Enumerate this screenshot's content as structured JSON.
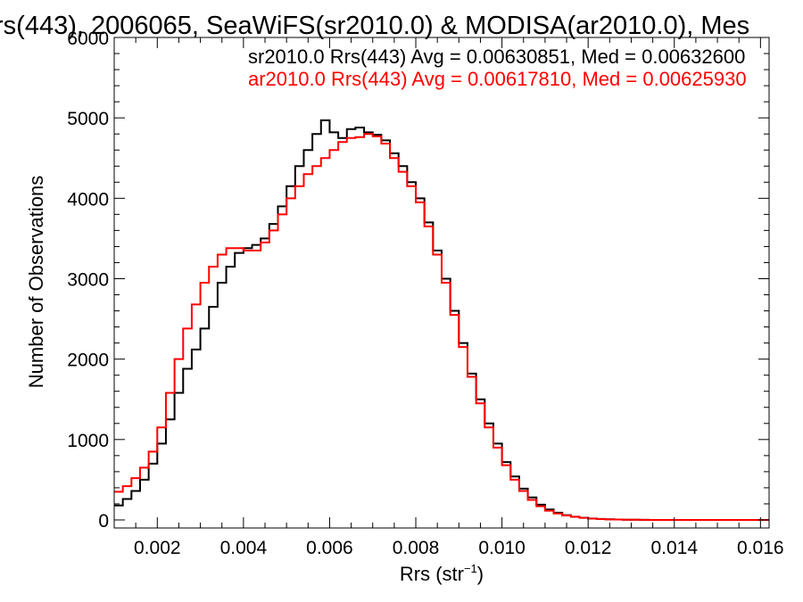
{
  "chart_data": {
    "type": "line",
    "title": "rs(443), 2006065, SeaWiFS(sr2010.0) & MODISA(ar2010.0), Mes",
    "xlabel": "Rrs (str",
    "xlabel_sup": "−1",
    "xlabel_close": ")",
    "ylabel": "Number of Observations",
    "xlim": [
      0.001,
      0.0162
    ],
    "ylim": [
      -100,
      6000
    ],
    "xticks": [
      0.002,
      0.004,
      0.006,
      0.008,
      0.01,
      0.012,
      0.014,
      0.016
    ],
    "xtick_labels": [
      "0.002",
      "0.004",
      "0.006",
      "0.008",
      "0.010",
      "0.012",
      "0.014",
      "0.016"
    ],
    "yticks": [
      0,
      1000,
      2000,
      3000,
      4000,
      5000,
      6000
    ],
    "ytick_labels": [
      "0",
      "1000",
      "2000",
      "3000",
      "4000",
      "5000",
      "6000"
    ],
    "grid": false,
    "legend_position": "top-right",
    "series": [
      {
        "name": "sr2010.0 Rrs(443) Avg = 0.00630851, Med = 0.00632600",
        "color": "#000000",
        "x": [
          0.001,
          0.0012,
          0.0014,
          0.0016,
          0.0018,
          0.002,
          0.0022,
          0.0024,
          0.0026,
          0.0028,
          0.003,
          0.0032,
          0.0034,
          0.0036,
          0.0038,
          0.004,
          0.0042,
          0.0044,
          0.0046,
          0.0048,
          0.005,
          0.0052,
          0.0054,
          0.0056,
          0.0058,
          0.006,
          0.0062,
          0.0064,
          0.0066,
          0.0068,
          0.007,
          0.0072,
          0.0074,
          0.0076,
          0.0078,
          0.008,
          0.0082,
          0.0084,
          0.0086,
          0.0088,
          0.009,
          0.0092,
          0.0094,
          0.0096,
          0.0098,
          0.01,
          0.0102,
          0.0104,
          0.0106,
          0.0108,
          0.011,
          0.0112,
          0.0114,
          0.0116,
          0.0118,
          0.012,
          0.0122,
          0.0124,
          0.0126,
          0.0128,
          0.013,
          0.0132,
          0.0134,
          0.0136,
          0.0138,
          0.014,
          0.0142,
          0.0144,
          0.0146,
          0.0148,
          0.015,
          0.0152,
          0.0154,
          0.0156,
          0.0158,
          0.016,
          0.0162
        ],
        "y": [
          180,
          260,
          360,
          500,
          700,
          950,
          1250,
          1580,
          1880,
          2120,
          2380,
          2650,
          2950,
          3150,
          3320,
          3380,
          3420,
          3500,
          3680,
          3900,
          4150,
          4400,
          4600,
          4800,
          4970,
          4820,
          4750,
          4860,
          4880,
          4820,
          4790,
          4720,
          4560,
          4400,
          4200,
          4000,
          3700,
          3350,
          3000,
          2600,
          2200,
          1820,
          1500,
          1200,
          950,
          720,
          540,
          390,
          280,
          190,
          130,
          90,
          60,
          40,
          28,
          18,
          12,
          8,
          5,
          3,
          2,
          1,
          0,
          0,
          0,
          0,
          0,
          0,
          0,
          0,
          0,
          0,
          0,
          0,
          0,
          0,
          0
        ]
      },
      {
        "name": "ar2010.0 Rrs(443) Avg = 0.00617810, Med = 0.00625930",
        "color": "#ff0000",
        "x": [
          0.001,
          0.0012,
          0.0014,
          0.0016,
          0.0018,
          0.002,
          0.0022,
          0.0024,
          0.0026,
          0.0028,
          0.003,
          0.0032,
          0.0034,
          0.0036,
          0.0038,
          0.004,
          0.0042,
          0.0044,
          0.0046,
          0.0048,
          0.005,
          0.0052,
          0.0054,
          0.0056,
          0.0058,
          0.006,
          0.0062,
          0.0064,
          0.0066,
          0.0068,
          0.007,
          0.0072,
          0.0074,
          0.0076,
          0.0078,
          0.008,
          0.0082,
          0.0084,
          0.0086,
          0.0088,
          0.009,
          0.0092,
          0.0094,
          0.0096,
          0.0098,
          0.01,
          0.0102,
          0.0104,
          0.0106,
          0.0108,
          0.011,
          0.0112,
          0.0114,
          0.0116,
          0.0118,
          0.012,
          0.0122,
          0.0124,
          0.0126,
          0.0128,
          0.013,
          0.0132,
          0.0134,
          0.0136,
          0.0138,
          0.014,
          0.0142,
          0.0144,
          0.0146,
          0.0148,
          0.015,
          0.0152,
          0.0154,
          0.0156,
          0.0158,
          0.016,
          0.0162
        ],
        "y": [
          350,
          420,
          520,
          650,
          850,
          1150,
          1580,
          2000,
          2380,
          2680,
          2950,
          3150,
          3300,
          3380,
          3380,
          3350,
          3350,
          3450,
          3600,
          3800,
          4000,
          4150,
          4300,
          4400,
          4500,
          4600,
          4700,
          4750,
          4760,
          4800,
          4770,
          4680,
          4500,
          4330,
          4150,
          3950,
          3650,
          3300,
          2950,
          2550,
          2150,
          1780,
          1450,
          1150,
          900,
          680,
          500,
          360,
          250,
          170,
          115,
          80,
          55,
          38,
          26,
          17,
          11,
          7,
          5,
          3,
          2,
          1,
          0,
          0,
          0,
          0,
          0,
          0,
          0,
          0,
          0,
          0,
          0,
          0,
          0,
          0,
          0
        ]
      }
    ]
  }
}
